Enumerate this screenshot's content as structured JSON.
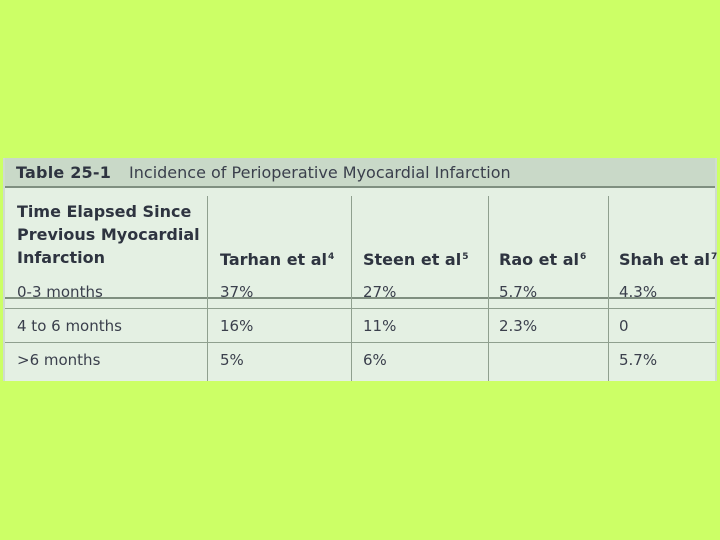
{
  "table": {
    "caption_number": "Table 25-1",
    "caption_title": "Incidence of Perioperative Myocardial Infarction",
    "first_header_lines": [
      "Time Elapsed Since",
      "Previous Myocardial",
      "Infarction"
    ],
    "columns": [
      {
        "label": "Tarhan et al",
        "ref": "4"
      },
      {
        "label": "Steen et al",
        "ref": "5"
      },
      {
        "label": "Rao et al",
        "ref": "6"
      },
      {
        "label": "Shah et al",
        "ref": "7"
      }
    ],
    "rows": [
      {
        "label": "0-3 months",
        "values": [
          "37%",
          "27%",
          "5.7%",
          "4.3%"
        ]
      },
      {
        "label": "4 to 6 months",
        "values": [
          "16%",
          "11%",
          "2.3%",
          "0"
        ]
      },
      {
        "label": ">6 months",
        "values": [
          "5%",
          "6%",
          "",
          "5.7%"
        ]
      }
    ]
  }
}
